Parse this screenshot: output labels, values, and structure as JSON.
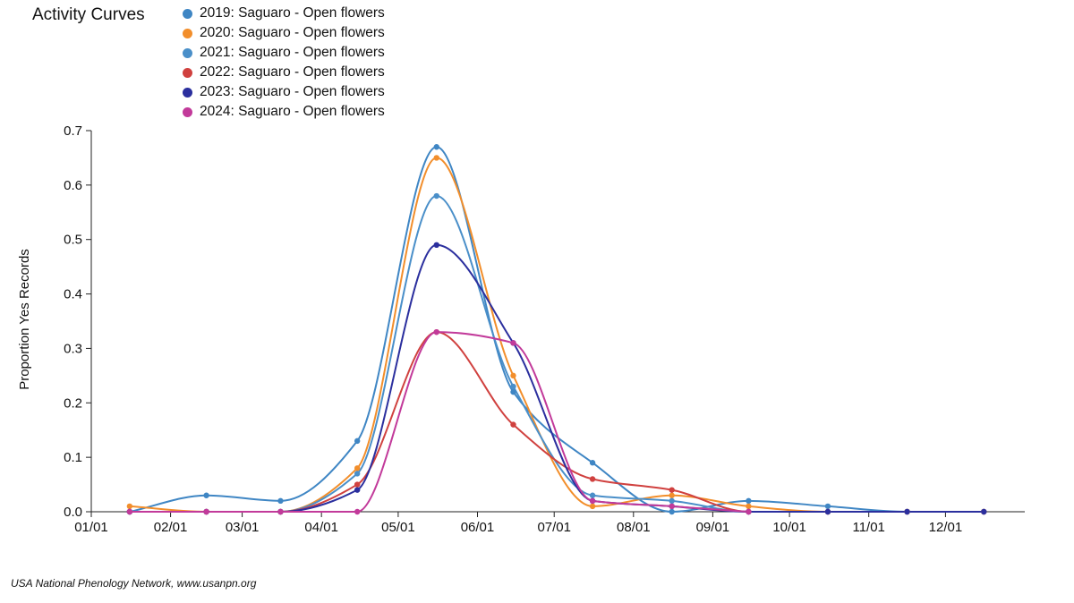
{
  "header": {
    "title": "Activity Curves"
  },
  "footer": {
    "credit": "USA National Phenology Network, www.usanpn.org"
  },
  "chart_data": {
    "type": "line",
    "title": "Activity Curves",
    "xlabel": "",
    "ylabel": "Proportion Yes Records",
    "ylim": [
      0,
      0.7
    ],
    "y_ticks": [
      "0.0",
      "0.1",
      "0.2",
      "0.3",
      "0.4",
      "0.5",
      "0.6",
      "0.7"
    ],
    "x_tick_labels": [
      "01/01",
      "02/01",
      "03/01",
      "04/01",
      "05/01",
      "06/01",
      "07/01",
      "08/01",
      "09/01",
      "10/01",
      "11/01",
      "12/01"
    ],
    "x_unit": "day of year",
    "x_ticks_day": [
      1,
      32,
      60,
      91,
      121,
      152,
      182,
      213,
      244,
      274,
      305,
      335
    ],
    "legend_position": "top-left",
    "series": [
      {
        "name": "2019: Saguaro - Open flowers",
        "color": "#3f86c4",
        "x": [
          16,
          46,
          75,
          105,
          136,
          166,
          197,
          228,
          258,
          289,
          320,
          350
        ],
        "y": [
          0.0,
          0.03,
          0.02,
          0.13,
          0.67,
          0.22,
          0.09,
          0.0,
          0.02,
          0.01,
          0.0,
          0.0
        ]
      },
      {
        "name": "2020: Saguaro - Open flowers",
        "color": "#f28e2b",
        "x": [
          16,
          46,
          75,
          105,
          136,
          166,
          197,
          228,
          258,
          289,
          320,
          350
        ],
        "y": [
          0.01,
          0.0,
          0.0,
          0.08,
          0.65,
          0.25,
          0.01,
          0.03,
          0.01,
          0.0,
          0.0,
          0.0
        ]
      },
      {
        "name": "2021: Saguaro - Open flowers",
        "color": "#4a8fc9",
        "x": [
          16,
          46,
          75,
          105,
          136,
          166,
          197,
          228,
          258,
          289,
          320,
          350
        ],
        "y": [
          0.0,
          0.0,
          0.0,
          0.07,
          0.58,
          0.23,
          0.03,
          0.02,
          0.0,
          0.0,
          0.0,
          0.0
        ]
      },
      {
        "name": "2022: Saguaro - Open flowers",
        "color": "#d0413f",
        "x": [
          16,
          46,
          75,
          105,
          136,
          166,
          197,
          228,
          258,
          289,
          320,
          350
        ],
        "y": [
          0.0,
          0.0,
          0.0,
          0.05,
          0.33,
          0.16,
          0.06,
          0.04,
          0.0,
          0.0,
          0.0,
          0.0
        ]
      },
      {
        "name": "2023: Saguaro - Open flowers",
        "color": "#2b2f9e",
        "x": [
          16,
          46,
          75,
          105,
          136,
          166,
          197,
          228,
          258,
          289,
          320,
          350
        ],
        "y": [
          0.0,
          0.0,
          0.0,
          0.04,
          0.49,
          0.31,
          0.02,
          0.01,
          0.0,
          0.0,
          0.0,
          0.0
        ]
      },
      {
        "name": "2024: Saguaro - Open flowers",
        "color": "#c23a9a",
        "x": [
          16,
          46,
          75,
          105,
          136,
          166,
          197,
          228,
          258
        ],
        "y": [
          0.0,
          0.0,
          0.0,
          0.0,
          0.33,
          0.31,
          0.02,
          0.01,
          0.0
        ]
      }
    ]
  }
}
